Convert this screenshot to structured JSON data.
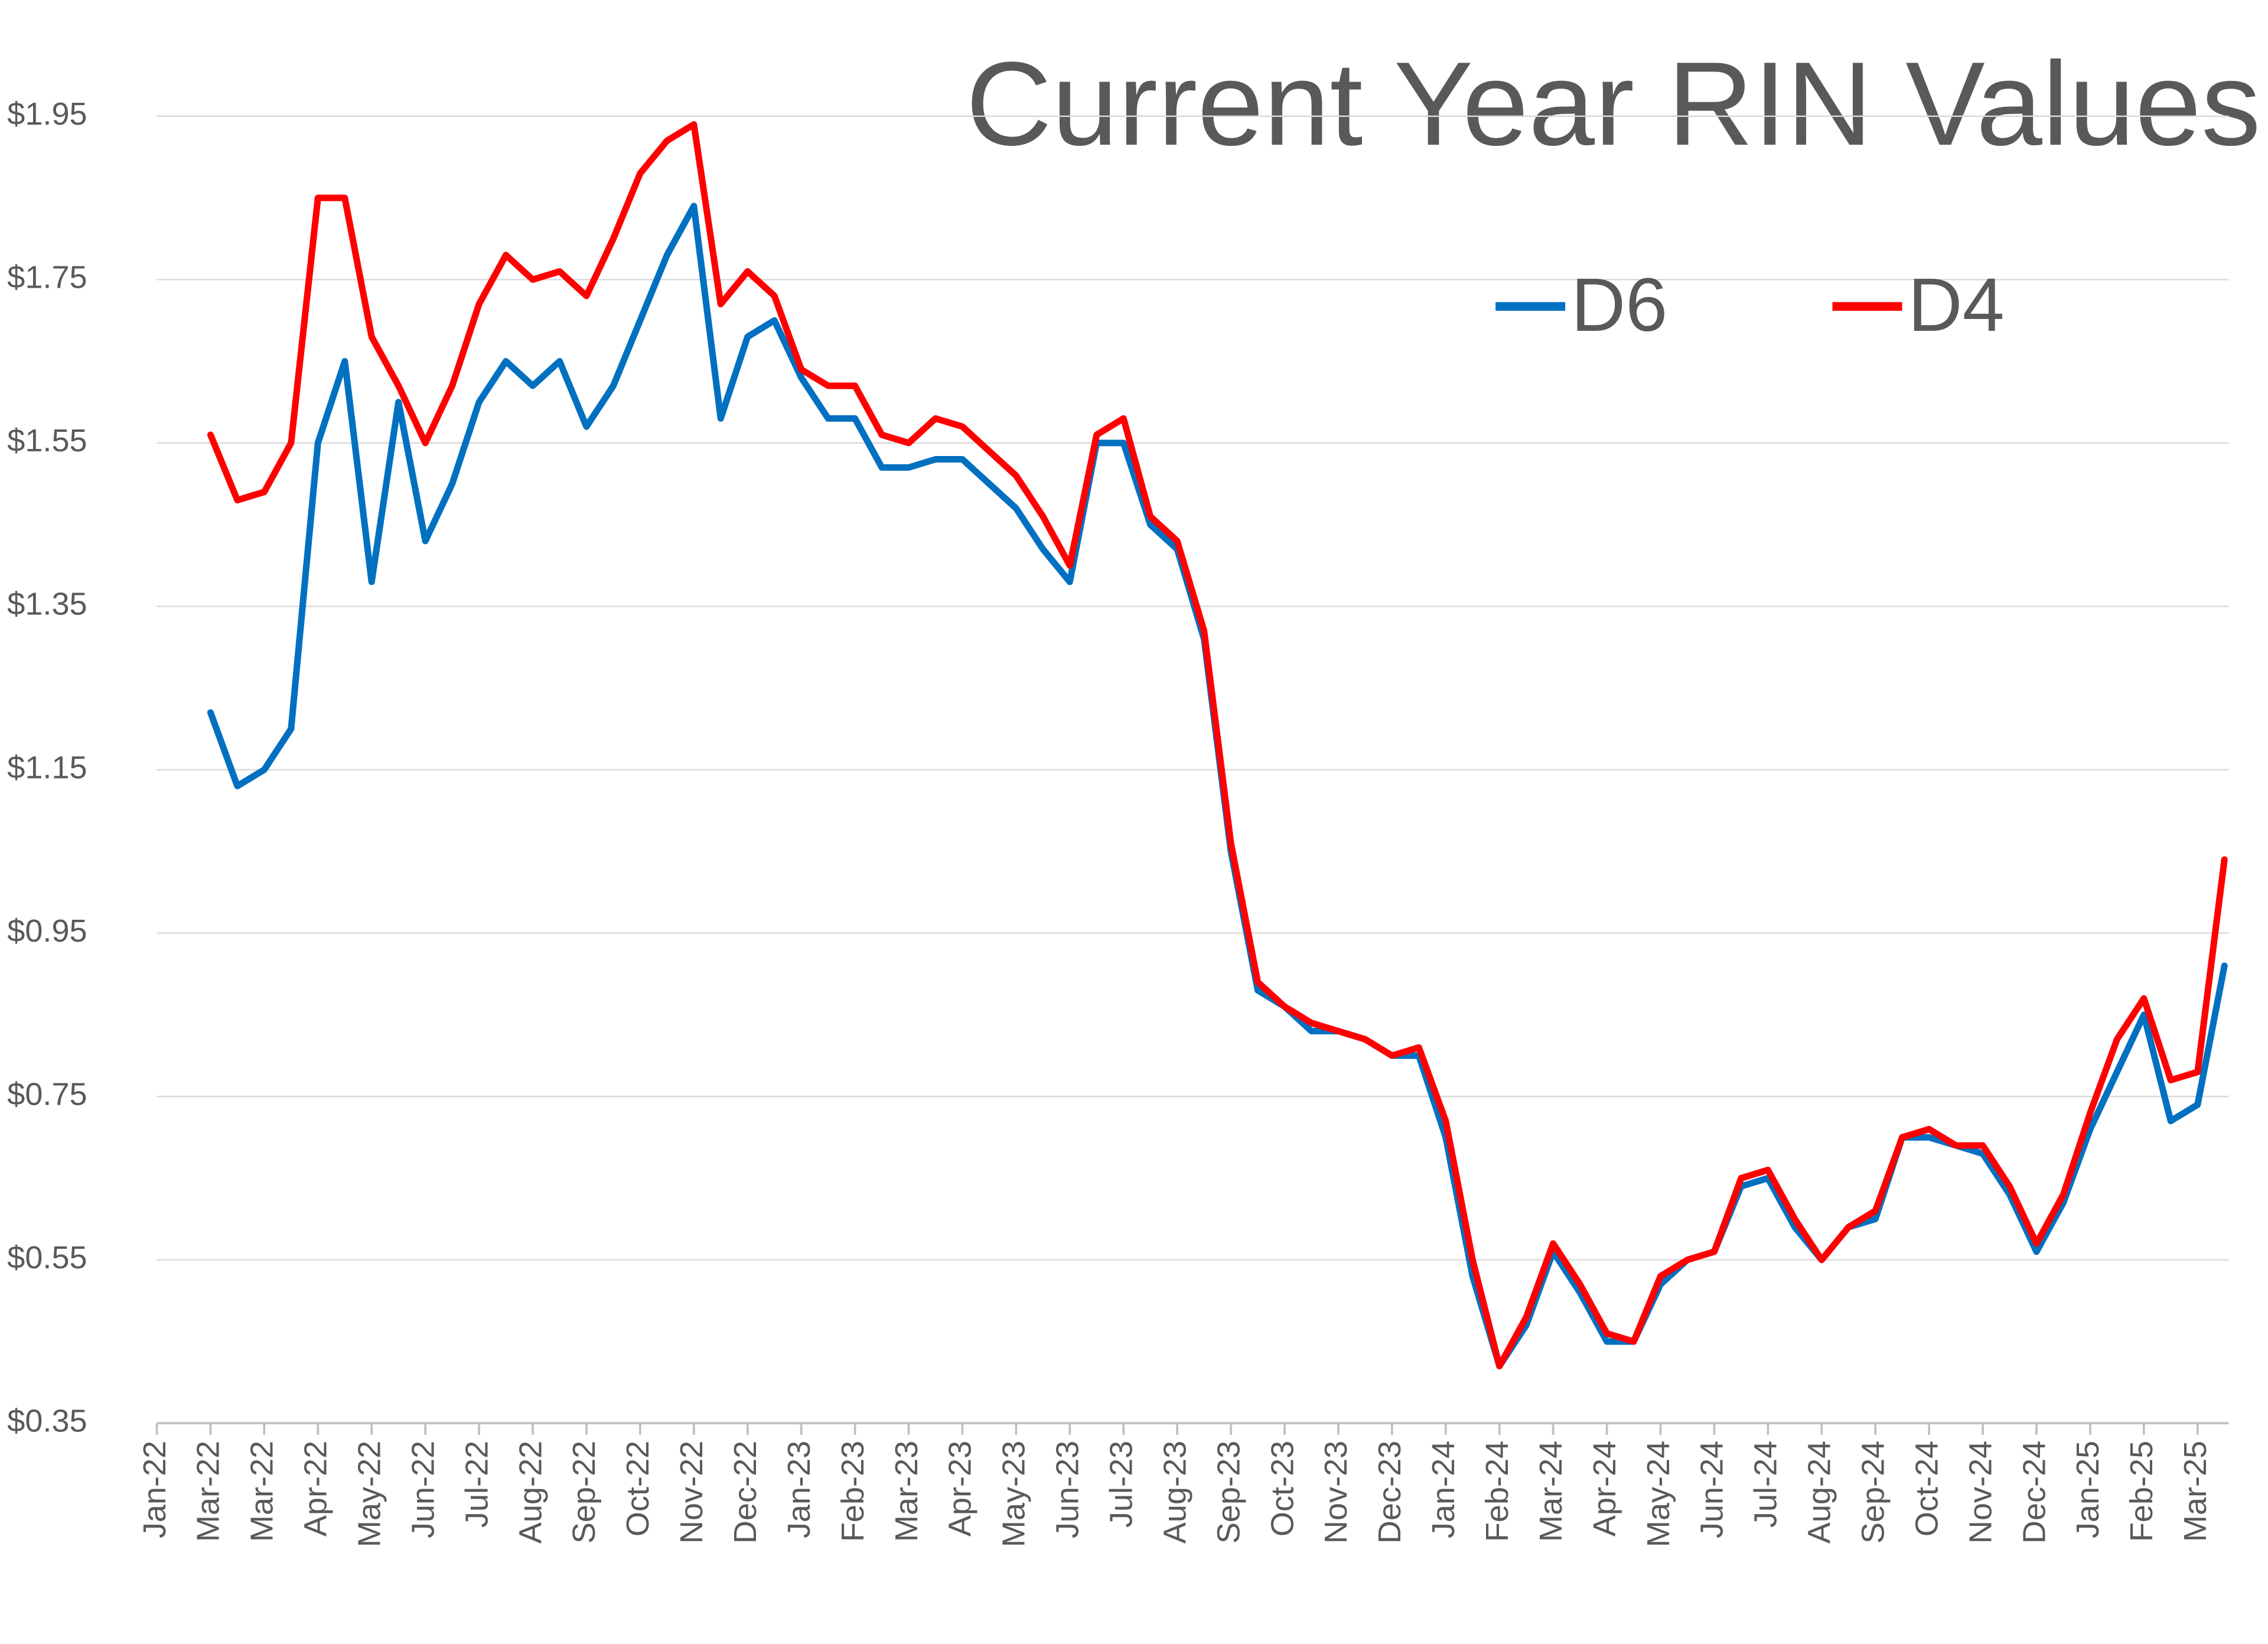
{
  "chart_data": {
    "type": "line",
    "title": "Current Year RIN Values",
    "categories": [
      "Jan-22",
      null,
      "Mar-22",
      null,
      "Mar-22",
      null,
      "Apr-22",
      null,
      "May-22",
      null,
      "Jun-22",
      null,
      "Jul-22",
      null,
      "Aug-22",
      null,
      "Sep-22",
      null,
      "Oct-22",
      null,
      "Nov-22",
      null,
      "Dec-22",
      null,
      "Jan-23",
      null,
      "Feb-23",
      null,
      "Mar-23",
      null,
      "Apr-23",
      null,
      "May-23",
      null,
      "Jun-23",
      null,
      "Jul-23",
      null,
      "Aug-23",
      null,
      "Sep-23",
      null,
      "Oct-23",
      null,
      "Nov-23",
      null,
      "Dec-23",
      null,
      "Jan-24",
      null,
      "Feb-24",
      null,
      "Mar-24",
      null,
      "Apr-24",
      null,
      "May-24",
      null,
      "Jun-24",
      null,
      "Jul-24",
      null,
      "Aug-24",
      null,
      "Sep-24",
      null,
      "Oct-24",
      null,
      "Nov-24",
      null,
      "Dec-24",
      null,
      "Jan-25",
      null,
      "Feb-25",
      null,
      "Mar-25",
      null
    ],
    "series": [
      {
        "name": "D6",
        "color": "#0070c0",
        "values": [
          null,
          null,
          1.22,
          1.13,
          1.15,
          1.2,
          1.55,
          1.65,
          1.38,
          1.6,
          1.43,
          1.5,
          1.6,
          1.65,
          1.62,
          1.65,
          1.57,
          1.62,
          1.7,
          1.78,
          1.84,
          1.58,
          1.68,
          1.7,
          1.63,
          1.58,
          1.58,
          1.52,
          1.52,
          1.53,
          1.53,
          1.5,
          1.47,
          1.42,
          1.38,
          1.55,
          1.55,
          1.45,
          1.42,
          1.31,
          1.05,
          0.88,
          0.86,
          0.83,
          0.83,
          0.82,
          0.8,
          0.8,
          0.7,
          0.53,
          0.42,
          0.47,
          0.56,
          0.51,
          0.45,
          0.45,
          0.52,
          0.55,
          0.56,
          0.64,
          0.65,
          0.59,
          0.55,
          0.59,
          0.6,
          0.7,
          0.7,
          0.69,
          0.68,
          0.63,
          0.56,
          0.62,
          0.71,
          0.78,
          0.85,
          0.72,
          0.74,
          0.91
        ]
      },
      {
        "name": "D4",
        "color": "#ff0000",
        "values": [
          null,
          null,
          1.56,
          1.48,
          1.49,
          1.55,
          1.85,
          1.85,
          1.68,
          1.62,
          1.55,
          1.62,
          1.72,
          1.78,
          1.75,
          1.76,
          1.73,
          1.8,
          1.88,
          1.92,
          1.94,
          1.72,
          1.76,
          1.73,
          1.64,
          1.62,
          1.62,
          1.56,
          1.55,
          1.58,
          1.57,
          1.54,
          1.51,
          1.46,
          1.4,
          1.56,
          1.58,
          1.46,
          1.43,
          1.32,
          1.06,
          0.89,
          0.86,
          0.84,
          0.83,
          0.82,
          0.8,
          0.81,
          0.72,
          0.55,
          0.42,
          0.48,
          0.57,
          0.52,
          0.46,
          0.45,
          0.53,
          0.55,
          0.56,
          0.65,
          0.66,
          0.6,
          0.55,
          0.59,
          0.61,
          0.7,
          0.71,
          0.69,
          0.69,
          0.64,
          0.57,
          0.63,
          0.73,
          0.82,
          0.87,
          0.77,
          0.78,
          1.04
        ]
      }
    ],
    "ylim": [
      0.35,
      1.95
    ],
    "yticks": [
      {
        "value": 0.35,
        "label": "$0.35"
      },
      {
        "value": 0.55,
        "label": "$0.55"
      },
      {
        "value": 0.75,
        "label": "$0.75"
      },
      {
        "value": 0.95,
        "label": "$0.95"
      },
      {
        "value": 1.15,
        "label": "$1.15"
      },
      {
        "value": 1.35,
        "label": "$1.35"
      },
      {
        "value": 1.55,
        "label": "$1.55"
      },
      {
        "value": 1.75,
        "label": "$1.75"
      },
      {
        "value": 1.95,
        "label": "$1.95"
      }
    ],
    "grid": true,
    "legend": "top right"
  }
}
